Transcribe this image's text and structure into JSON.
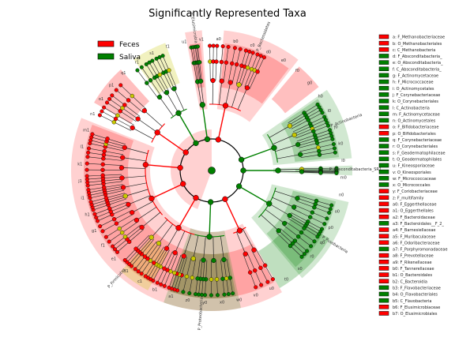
{
  "chart_data": {
    "type": "cladogram",
    "title": "Significantly Represented Taxa",
    "legend": {
      "placement": "top-left",
      "entries": [
        {
          "name": "Feces",
          "color": "#ff0000"
        },
        {
          "name": "Saliva",
          "color": "#008000"
        }
      ]
    },
    "colors": {
      "feces": "#ff0000",
      "saliva": "#008000",
      "neutral": "#c8c800"
    },
    "clade_sectors": [
      {
        "label": "P_Firmicutes",
        "start": 150,
        "end": 292,
        "group": "feces",
        "ring": "outer"
      },
      {
        "label": "P_Elusimicrobia",
        "start": 349,
        "end": 356,
        "group": "feces",
        "ring": "outer"
      },
      {
        "label": "P_Bacteroidetes",
        "start": 5,
        "end": 38,
        "group": "feces",
        "ring": "outer"
      },
      {
        "label": "P_Actinobacteria",
        "start": 55,
        "end": 85,
        "group": "saliva",
        "ring": "outer"
      },
      {
        "label": "P_Absconditabacteria_SR1",
        "start": 88,
        "end": 92,
        "group": "saliva",
        "ring": "outer"
      },
      {
        "label": "P_Fusobacteria",
        "start": 103,
        "end": 140,
        "group": "saliva",
        "ring": "outer"
      },
      {
        "label": "P_Proteobacteria",
        "start": 168,
        "end": 200,
        "group": "saliva",
        "ring": "outer"
      }
    ],
    "letter_labels": [
      "a0",
      "b0",
      "c0",
      "d0",
      "e0",
      "f0",
      "g0",
      "h0",
      "i0",
      "j0",
      "k0",
      "l0",
      "m0",
      "n0",
      "o0",
      "p0",
      "q0",
      "r0",
      "s0",
      "t0",
      "u0",
      "v0",
      "w0",
      "x0",
      "y0",
      "z0",
      "a1",
      "b1",
      "c1",
      "d1",
      "e1",
      "f1",
      "g1",
      "h1",
      "i1",
      "j1",
      "k1",
      "l1",
      "m1",
      "n1",
      "o1",
      "p1",
      "q1",
      "r1",
      "s1",
      "t1",
      "u1",
      "v1"
    ],
    "legend_right": [
      {
        "key": "a",
        "text": "a: F_Methanobacteriaceae",
        "group": "feces"
      },
      {
        "key": "b",
        "text": "b: O_Methanobacteriales",
        "group": "feces"
      },
      {
        "key": "c",
        "text": "c: C_Methanobacteria",
        "group": "feces"
      },
      {
        "key": "d",
        "text": "d: F_Absconditabacteria_",
        "group": "saliva"
      },
      {
        "key": "e",
        "text": "e: O_Absconditabacteria_",
        "group": "saliva"
      },
      {
        "key": "f",
        "text": "f: C_Absconditabacteria_",
        "group": "saliva"
      },
      {
        "key": "g",
        "text": "g: F_Actinomycetaceae",
        "group": "saliva"
      },
      {
        "key": "h",
        "text": "h: F_Micrococcaceae",
        "group": "saliva"
      },
      {
        "key": "i",
        "text": "i: O_Actinomycetales",
        "group": "saliva"
      },
      {
        "key": "j",
        "text": "j: F_Corynebacteriaceae",
        "group": "saliva"
      },
      {
        "key": "k",
        "text": "k: O_Corynebacteriales",
        "group": "saliva"
      },
      {
        "key": "l",
        "text": "l: C_Actinobacteria",
        "group": "saliva"
      },
      {
        "key": "m",
        "text": "m: F_Actinomycetaceae",
        "group": "saliva"
      },
      {
        "key": "n",
        "text": "n: O_Actinomycetales",
        "group": "saliva"
      },
      {
        "key": "o",
        "text": "o: F_Bifidobacteriaceae",
        "group": "feces"
      },
      {
        "key": "p",
        "text": "p: O_Bifidobacteriales",
        "group": "feces"
      },
      {
        "key": "q",
        "text": "q: F_Corynebacteriaceae",
        "group": "saliva"
      },
      {
        "key": "r",
        "text": "r: O_Corynebacteriales",
        "group": "saliva"
      },
      {
        "key": "s",
        "text": "s: F_Geodermatophilaceae",
        "group": "saliva"
      },
      {
        "key": "t",
        "text": "t: O_Geodermatophilales",
        "group": "saliva"
      },
      {
        "key": "u",
        "text": "u: F_Kineosporiaceae",
        "group": "saliva"
      },
      {
        "key": "v",
        "text": "v: O_Kineosporiales",
        "group": "saliva"
      },
      {
        "key": "w",
        "text": "w: F_Microccoccaceae",
        "group": "saliva"
      },
      {
        "key": "x",
        "text": "x: O_Micrococcales",
        "group": "saliva"
      },
      {
        "key": "y",
        "text": "y: F_Coriobacteriaceae",
        "group": "feces"
      },
      {
        "key": "z",
        "text": "z: F_multifamily",
        "group": "feces"
      },
      {
        "key": "a0",
        "text": "a0: F_Eggerthellaceae",
        "group": "feces"
      },
      {
        "key": "a1",
        "text": "a1: O_Eggerthellales",
        "group": "feces"
      },
      {
        "key": "a2",
        "text": "a2: F_Bacteroidaceae",
        "group": "feces"
      },
      {
        "key": "a3",
        "text": "a3: F_Bacteroidales__F_2_",
        "group": "saliva"
      },
      {
        "key": "a4",
        "text": "a4: F_Barnesiellaceae",
        "group": "feces"
      },
      {
        "key": "a5",
        "text": "a5: F_Muribaculaceae",
        "group": "feces"
      },
      {
        "key": "a6",
        "text": "a6: F_Odoribacteraceae",
        "group": "feces"
      },
      {
        "key": "a7",
        "text": "a7: F_Porphyromonadaceae",
        "group": "saliva"
      },
      {
        "key": "a8",
        "text": "a8: F_Prevotellaceae",
        "group": "feces"
      },
      {
        "key": "a9",
        "text": "a9: F_Rikenellaceae",
        "group": "feces"
      },
      {
        "key": "b0",
        "text": "b0: F_Tannerellaceae",
        "group": "feces"
      },
      {
        "key": "b1",
        "text": "b1: O_Bacteroidales",
        "group": "feces"
      },
      {
        "key": "b2",
        "text": "b2: C_Bacteroidia",
        "group": "feces"
      },
      {
        "key": "b3",
        "text": "b3: F_Flavobacteriaceae",
        "group": "saliva"
      },
      {
        "key": "b4",
        "text": "b4: O_Flavobacteriales",
        "group": "saliva"
      },
      {
        "key": "b5",
        "text": "b5: C_Flavobacteria",
        "group": "saliva"
      },
      {
        "key": "b6",
        "text": "b6: F_Elusimicrobiaceae",
        "group": "feces"
      },
      {
        "key": "b7",
        "text": "b7: O_Elusimicrobiales",
        "group": "feces"
      }
    ]
  }
}
